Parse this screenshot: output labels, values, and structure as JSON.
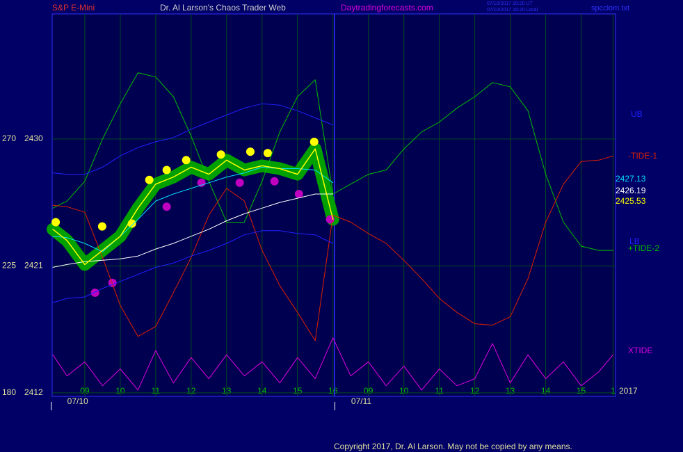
{
  "chart_data": {
    "type": "line",
    "symbol": "S&P E-Mini",
    "title": "Dr. Al Larson's Chaos Trader Web",
    "website": "Daytradingforecasts.com",
    "timestamps": [
      "07/10/2017 20:20 UT",
      "07/10/2017 16:20 Local"
    ],
    "filename": "spcclom.txt",
    "copyright": "Copyright 2017, Dr. Al Larson. May not be copied by any means.",
    "year_label": "2017",
    "grid": true,
    "xlim": [
      -0.92,
      14.97
    ],
    "xticks": [
      {
        "value": 0,
        "label": "09"
      },
      {
        "value": 1,
        "label": "10"
      },
      {
        "value": 2,
        "label": "11"
      },
      {
        "value": 3,
        "label": "12"
      },
      {
        "value": 4,
        "label": "13"
      },
      {
        "value": 5,
        "label": "14"
      },
      {
        "value": 6,
        "label": "15"
      },
      {
        "value": 7,
        "label": "16"
      },
      {
        "value": 8,
        "label": "09"
      },
      {
        "value": 9,
        "label": "10"
      },
      {
        "value": 10,
        "label": "11"
      },
      {
        "value": 11,
        "label": "12"
      },
      {
        "value": 12,
        "label": "13"
      },
      {
        "value": 13,
        "label": "14"
      },
      {
        "value": 14,
        "label": "15"
      },
      {
        "value": 14.9,
        "label": "1"
      }
    ],
    "date_labels": [
      {
        "x": -0.2,
        "label": "07/10"
      },
      {
        "x": 7.8,
        "label": "07/11"
      }
    ],
    "now_x": 7.04,
    "ylim": [
      2411.75,
      2438.87
    ],
    "yticks": [
      2412,
      2421,
      2430
    ],
    "y2lim": [
      178.77,
      314.37
    ],
    "y2ticks": [
      180,
      225,
      270
    ],
    "x": [
      -0.9,
      -0.5,
      0,
      0.5,
      1,
      1.5,
      2,
      2.5,
      3,
      3.5,
      4,
      4.5,
      5,
      5.5,
      6,
      6.5,
      7,
      7.5,
      8,
      8.5,
      9,
      9.5,
      10,
      10.5,
      11,
      11.5,
      12,
      12.5,
      13,
      13.5,
      14,
      14.5,
      14.9
    ],
    "series": [
      {
        "name": "+TIDE-2",
        "color": "#00c000",
        "values": [
          2425.1,
          2425.6,
          2427.0,
          2430.0,
          2432.5,
          2434.7,
          2434.4,
          2433.0,
          2430.2,
          2427.0,
          2424.1,
          2424.1,
          2427.0,
          2430.5,
          2433.0,
          2434.2,
          2426.1,
          2426.8,
          2427.5,
          2427.8,
          2429.3,
          2430.5,
          2431.2,
          2432.2,
          2433.0,
          2434.0,
          2433.7,
          2432.0,
          2427.5,
          2424.1,
          2422.4,
          2422.1,
          2422.1
        ]
      },
      {
        "name": "-TIDE-1",
        "color": "#e02000",
        "values": [
          2425.3,
          2425.2,
          2424.8,
          2421.6,
          2418.2,
          2416.0,
          2416.7,
          2419.1,
          2421.6,
          2424.6,
          2426.5,
          2425.6,
          2422.1,
          2419.6,
          2417.7,
          2415.7,
          2424.6,
          2424.1,
          2423.3,
          2422.6,
          2421.4,
          2420.1,
          2418.7,
          2417.7,
          2416.9,
          2416.8,
          2417.4,
          2420.1,
          2424.1,
          2426.8,
          2428.4,
          2428.5,
          2428.8
        ]
      },
      {
        "name": "UB",
        "color": "#2020ff",
        "values": [
          2427.6,
          2427.5,
          2427.5,
          2428.0,
          2428.8,
          2429.4,
          2429.8,
          2430.1,
          2430.7,
          2431.2,
          2431.7,
          2432.2,
          2432.5,
          2432.4,
          2432.0,
          2431.5,
          2431.0,
          null,
          null,
          null,
          null,
          null,
          null,
          null,
          null,
          null,
          null,
          null,
          null,
          null,
          null,
          null,
          null
        ]
      },
      {
        "name": "LB",
        "color": "#2020ff",
        "values": [
          2418.4,
          2418.7,
          2418.8,
          2419.4,
          2419.9,
          2420.4,
          2420.9,
          2421.2,
          2421.7,
          2422.1,
          2422.6,
          2423.2,
          2423.5,
          2423.5,
          2423.3,
          2423.2,
          2422.6,
          null,
          null,
          null,
          null,
          null,
          null,
          null,
          null,
          null,
          null,
          null,
          null,
          null,
          null,
          null,
          null
        ]
      },
      {
        "color": "#ffffff",
        "last_value": 2426.19,
        "values": [
          2420.9,
          2421.1,
          2421.3,
          2421.4,
          2421.5,
          2421.7,
          2422.2,
          2422.6,
          2423.1,
          2423.6,
          2424.2,
          2424.7,
          2425.1,
          2425.5,
          2425.8,
          2426.1,
          2426.1,
          null,
          null,
          null,
          null,
          null,
          null,
          null,
          null,
          null,
          null,
          null,
          null,
          null,
          null,
          null,
          null
        ]
      },
      {
        "color": "#00e0ff",
        "last_value": 2427.13,
        "values": [
          2423.1,
          2423.0,
          2422.6,
          2422.0,
          2423.1,
          2424.3,
          2425.6,
          2426.1,
          2426.5,
          2426.9,
          2427.3,
          2427.6,
          2428.0,
          2427.9,
          2427.9,
          2427.8,
          2426.9,
          null,
          null,
          null,
          null,
          null,
          null,
          null,
          null,
          null,
          null,
          null,
          null,
          null,
          null,
          null,
          null
        ]
      },
      {
        "color": "#ffff00",
        "halo": "#00a000",
        "last_value": 2425.53,
        "values": [
          2423.6,
          2422.8,
          2421.1,
          2422.1,
          2423.1,
          2425.1,
          2426.8,
          2427.3,
          2428.0,
          2427.5,
          2428.5,
          2427.8,
          2428.1,
          2427.9,
          2427.5,
          2429.3,
          2424.3,
          null,
          null,
          null,
          null,
          null,
          null,
          null,
          null,
          null,
          null,
          null,
          null,
          null,
          null,
          null,
          null
        ]
      },
      {
        "name": "XTIDE",
        "color": "#e000e0",
        "values": [
          2414.7,
          2413.2,
          2414.2,
          2412.5,
          2413.7,
          2412.2,
          2415.0,
          2412.7,
          2414.5,
          2413.0,
          2414.7,
          2413.2,
          2414.2,
          2412.7,
          2414.5,
          2413.0,
          2415.9,
          2413.2,
          2414.2,
          2412.5,
          2413.9,
          2412.2,
          2413.7,
          2412.5,
          2413.0,
          2415.5,
          2412.7,
          2414.7,
          2413.0,
          2414.2,
          2412.5,
          2413.5,
          2414.7
        ]
      }
    ],
    "markers": [
      {
        "color": "#ffff00",
        "x": [
          -0.82,
          0.49,
          1.33,
          1.82,
          2.31,
          2.86,
          3.84,
          4.67,
          5.16,
          6.47
        ],
        "values": [
          2424.1,
          2423.8,
          2424.0,
          2427.1,
          2427.8,
          2428.5,
          2428.9,
          2429.1,
          2429.0,
          2429.8
        ]
      },
      {
        "color": "#c000c0",
        "x": [
          0.29,
          0.78,
          2.31,
          3.29,
          4.37,
          5.35,
          6.04,
          6.92
        ],
        "values": [
          2419.1,
          2419.8,
          2425.2,
          2426.9,
          2426.9,
          2427.0,
          2426.1,
          2424.3
        ]
      }
    ]
  }
}
